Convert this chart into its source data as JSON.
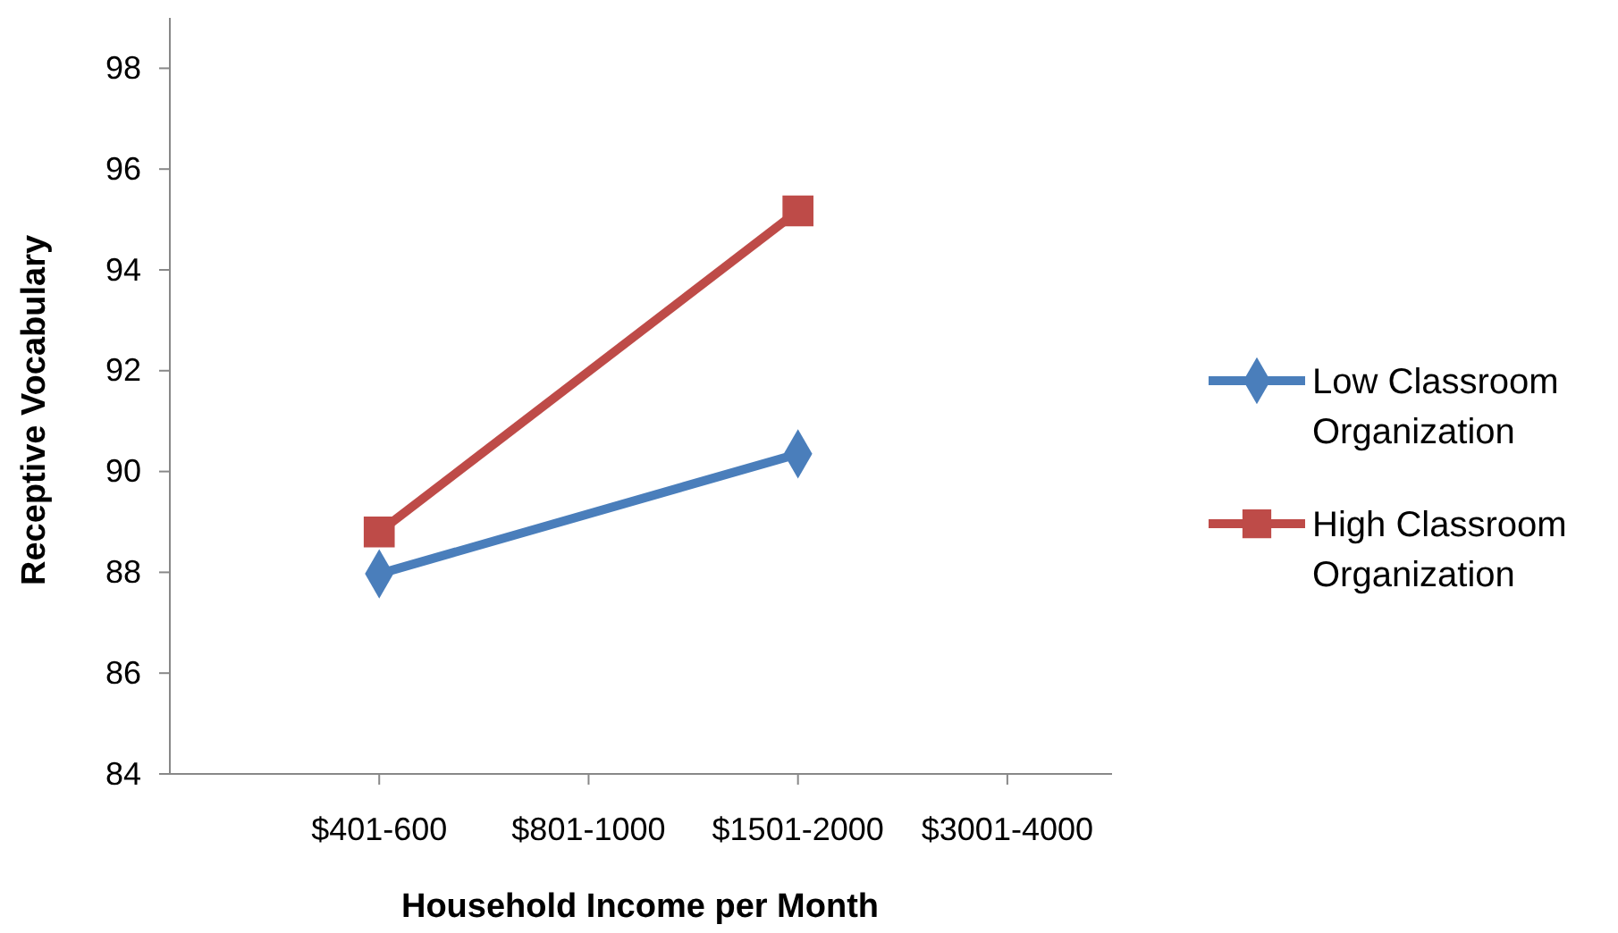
{
  "chart_data": {
    "type": "line",
    "xlabel": "Household Income per Month",
    "ylabel": "Receptive Vocabulary",
    "categories": [
      "$401-600",
      "$801-1000",
      "$1501-2000",
      "$3001-4000"
    ],
    "series": [
      {
        "name": "Low Classroom Organization",
        "color": "#4a7ebb",
        "marker": "diamond",
        "values": [
          87.97,
          null,
          90.35,
          null
        ]
      },
      {
        "name": "High Classroom Organization",
        "color": "#be4b48",
        "marker": "square",
        "values": [
          88.8,
          null,
          95.17,
          null
        ]
      }
    ],
    "ylim": [
      84,
      99
    ],
    "yticks": [
      84,
      86,
      88,
      90,
      92,
      94,
      96,
      98
    ],
    "grid": false,
    "legend": "right",
    "line_style": "solid"
  }
}
